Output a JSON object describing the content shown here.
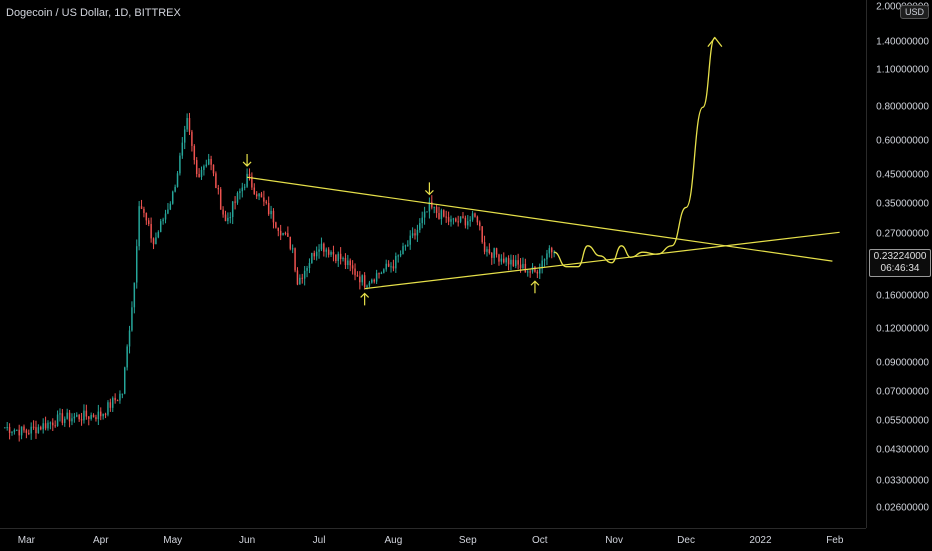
{
  "header": {
    "title": "Dogecoin / US Dollar, 1D, BITTREX"
  },
  "price_axis": {
    "currency": "USD",
    "ticks": [
      "2.00000000",
      "1.40000000",
      "1.10000000",
      "0.80000000",
      "0.60000000",
      "0.45000000",
      "0.35000000",
      "0.27000000",
      "0.16000000",
      "0.12000000",
      "0.09000000",
      "0.07000000",
      "0.05500000",
      "0.04300000",
      "0.03300000",
      "0.02600000"
    ],
    "last_price": "0.23224000",
    "countdown": "06:46:34"
  },
  "time_axis": {
    "ticks": [
      "Mar",
      "Apr",
      "May",
      "Jun",
      "Jul",
      "Aug",
      "Sep",
      "Oct",
      "Nov",
      "Dec",
      "2022",
      "Feb"
    ]
  },
  "colors": {
    "up": "#26a69a",
    "down": "#ef5350",
    "drawing": "#e6e04a",
    "background": "#000000",
    "text": "#d1d4dc"
  },
  "chart_data": {
    "type": "candlestick",
    "title": "Dogecoin / US Dollar, 1D, BITTREX",
    "scale": "log",
    "ylim": [
      0.022,
      2.0
    ],
    "x_range": [
      "2021-02-18",
      "2022-02-14"
    ],
    "series": [
      {
        "date": "2021-02-20",
        "close": 0.052
      },
      {
        "date": "2021-03-01",
        "close": 0.05
      },
      {
        "date": "2021-03-15",
        "close": 0.056
      },
      {
        "date": "2021-04-01",
        "close": 0.058
      },
      {
        "date": "2021-04-10",
        "close": 0.07
      },
      {
        "date": "2021-04-15",
        "close": 0.18
      },
      {
        "date": "2021-04-17",
        "close": 0.36
      },
      {
        "date": "2021-04-23",
        "close": 0.25
      },
      {
        "date": "2021-05-01",
        "close": 0.38
      },
      {
        "date": "2021-05-07",
        "close": 0.7
      },
      {
        "date": "2021-05-11",
        "close": 0.45
      },
      {
        "date": "2021-05-16",
        "close": 0.52
      },
      {
        "date": "2021-05-23",
        "close": 0.3
      },
      {
        "date": "2021-06-01",
        "close": 0.44
      },
      {
        "date": "2021-06-10",
        "close": 0.33
      },
      {
        "date": "2021-06-20",
        "close": 0.24
      },
      {
        "date": "2021-06-22",
        "close": 0.18
      },
      {
        "date": "2021-07-01",
        "close": 0.25
      },
      {
        "date": "2021-07-10",
        "close": 0.22
      },
      {
        "date": "2021-07-20",
        "close": 0.18
      },
      {
        "date": "2021-08-01",
        "close": 0.21
      },
      {
        "date": "2021-08-10",
        "close": 0.27
      },
      {
        "date": "2021-08-16",
        "close": 0.34
      },
      {
        "date": "2021-08-25",
        "close": 0.3
      },
      {
        "date": "2021-09-05",
        "close": 0.31
      },
      {
        "date": "2021-09-08",
        "close": 0.24
      },
      {
        "date": "2021-09-20",
        "close": 0.21
      },
      {
        "date": "2021-09-29",
        "close": 0.195
      },
      {
        "date": "2021-10-05",
        "close": 0.24
      },
      {
        "date": "2021-10-07",
        "close": 0.232
      }
    ],
    "annotations": {
      "upper_trendline": [
        [
          "2021-06-01",
          0.44
        ],
        [
          "2022-01-31",
          0.215
        ]
      ],
      "lower_trendline": [
        [
          "2021-07-20",
          0.17
        ],
        [
          "2022-02-03",
          0.275
        ]
      ],
      "projection": [
        [
          "2021-10-07",
          0.232
        ],
        [
          "2021-10-12",
          0.205
        ],
        [
          "2021-10-17",
          0.205
        ],
        [
          "2021-10-21",
          0.245
        ],
        [
          "2021-10-26",
          0.225
        ],
        [
          "2021-10-31",
          0.212
        ],
        [
          "2021-11-04",
          0.245
        ],
        [
          "2021-11-08",
          0.222
        ],
        [
          "2021-11-13",
          0.232
        ],
        [
          "2021-11-19",
          0.228
        ],
        [
          "2021-11-25",
          0.245
        ],
        [
          "2021-12-01",
          0.34
        ],
        [
          "2021-12-08",
          0.8
        ],
        [
          "2021-12-13",
          1.45
        ]
      ],
      "down_arrows": [
        [
          "2021-06-01",
          0.51
        ],
        [
          "2021-08-16",
          0.4
        ]
      ],
      "up_arrows": [
        [
          "2021-07-20",
          0.155
        ],
        [
          "2021-09-29",
          0.172
        ]
      ]
    }
  }
}
